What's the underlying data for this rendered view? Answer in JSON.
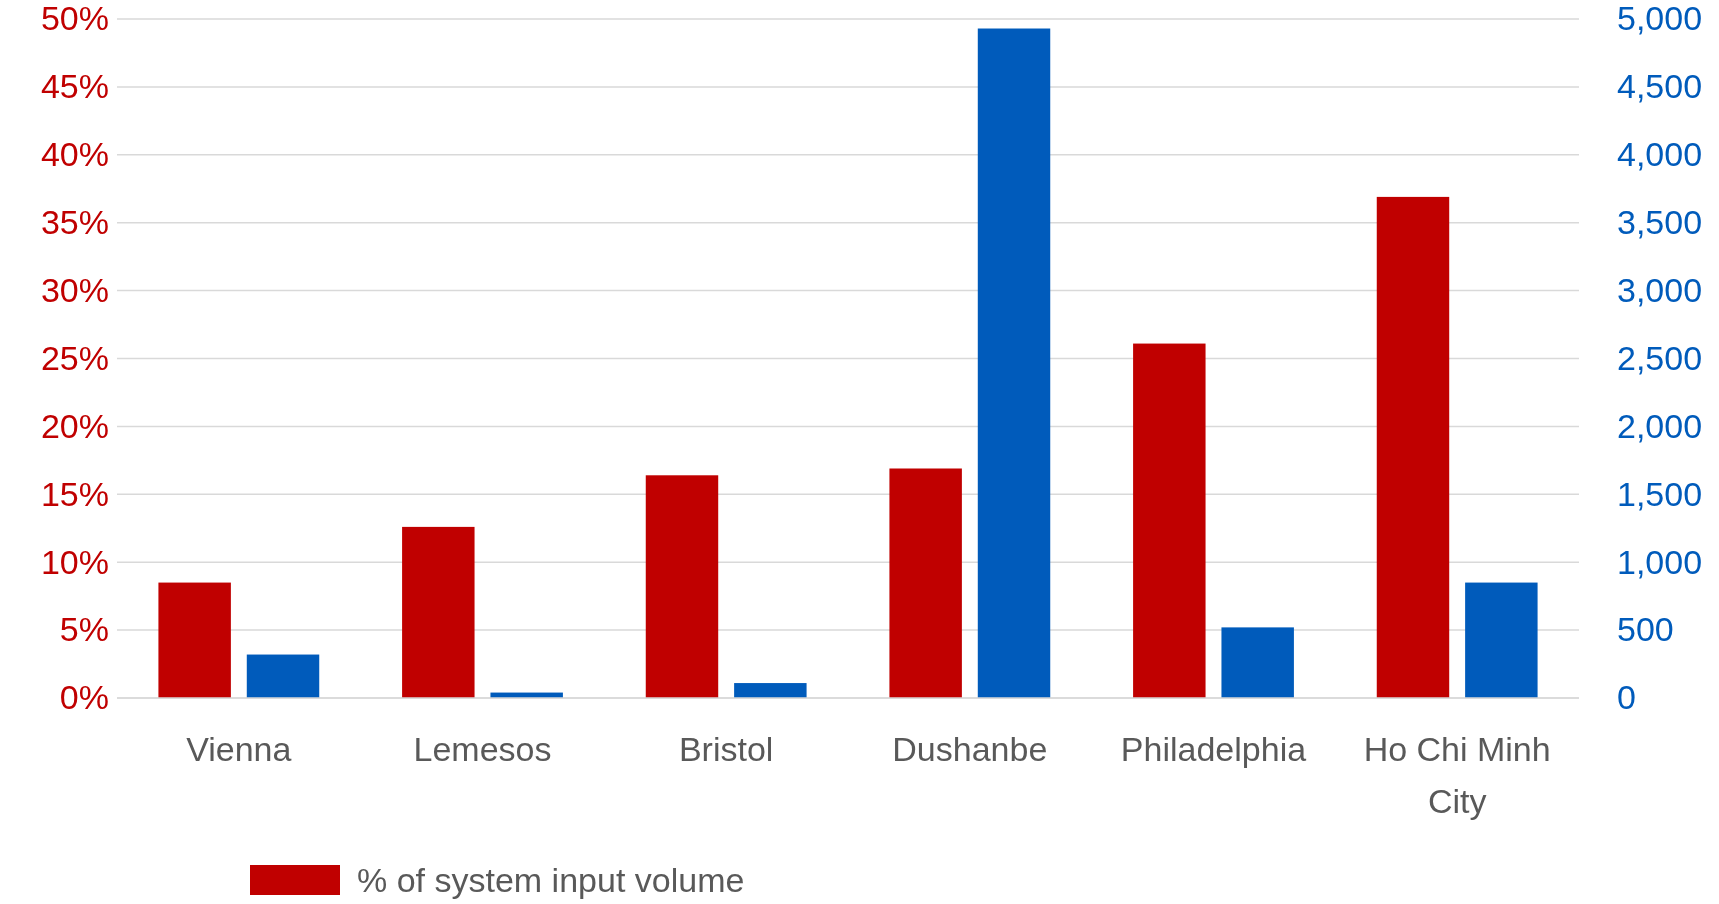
{
  "chart_data": {
    "type": "bar",
    "categories": [
      "Vienna",
      "Lemesos",
      "Bristol",
      "Dushanbe",
      "Philadelphia",
      "Ho Chi Minh City"
    ],
    "series": [
      {
        "name": "% of system input volume",
        "color": "#c00000",
        "values": [
          8.5,
          12.6,
          16.4,
          16.9,
          26.1,
          36.9
        ]
      },
      {
        "color": "#005bbb",
        "axis": "y2",
        "values": [
          320,
          40,
          110,
          4930,
          520,
          850
        ]
      }
    ],
    "ylim": [
      0,
      50
    ],
    "yticks": [
      {
        "value": 0,
        "label": "0%"
      },
      {
        "value": 5,
        "label": "5%"
      },
      {
        "value": 10,
        "label": "10%"
      },
      {
        "value": 15,
        "label": "15%"
      },
      {
        "value": 20,
        "label": "20%"
      },
      {
        "value": 25,
        "label": "25%"
      },
      {
        "value": 30,
        "label": "30%"
      },
      {
        "value": 35,
        "label": "35%"
      },
      {
        "value": 40,
        "label": "40%"
      },
      {
        "value": 45,
        "label": "45%"
      },
      {
        "value": 50,
        "label": "50%"
      }
    ],
    "y2lim": [
      0,
      5000
    ],
    "y2ticks": [
      0,
      500,
      {
        "value": 1000,
        "label": "1,000"
      },
      {
        "value": 1500,
        "label": "1,500"
      },
      {
        "value": 2000,
        "label": "2,000"
      },
      {
        "value": 2500,
        "label": "2,500"
      },
      {
        "value": 3000,
        "label": "3,000"
      },
      {
        "value": 3500,
        "label": "3,500"
      },
      {
        "value": 4000,
        "label": "4,000"
      },
      {
        "value": 4500,
        "label": "4,500"
      },
      {
        "value": 5000,
        "label": "5,000"
      }
    ],
    "grid": "y",
    "legend": "bottom left"
  }
}
